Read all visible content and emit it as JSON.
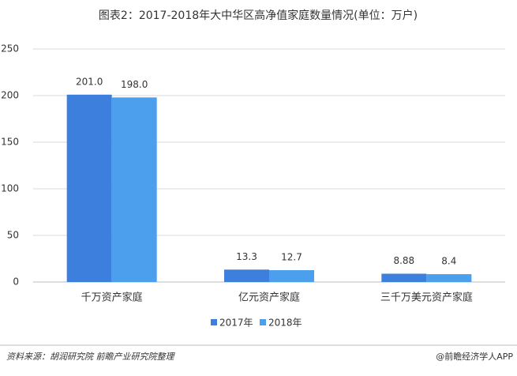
{
  "chart_data": {
    "type": "bar",
    "title": "图表2：2017-2018年大中华区高净值家庭数量情况(单位：万户)",
    "categories": [
      "千万资产家庭",
      "亿元资产家庭",
      "三千万美元资产家庭"
    ],
    "series": [
      {
        "name": "2017年",
        "color": "#3d7fdd",
        "values": [
          201.0,
          13.3,
          8.88
        ],
        "value_labels": [
          "201.0",
          "13.3",
          "8.88"
        ]
      },
      {
        "name": "2018年",
        "color": "#4c9fec",
        "values": [
          198.0,
          12.7,
          8.4
        ],
        "value_labels": [
          "198.0",
          "12.7",
          "8.4"
        ]
      }
    ],
    "ylim": [
      0,
      250
    ],
    "yticks": [
      0,
      50,
      100,
      150,
      200,
      250
    ],
    "grid": true,
    "legend": "bottom",
    "source": "资料来源：胡润研究院 前瞻产业研究院整理",
    "credit": "@前瞻经济学人APP"
  }
}
